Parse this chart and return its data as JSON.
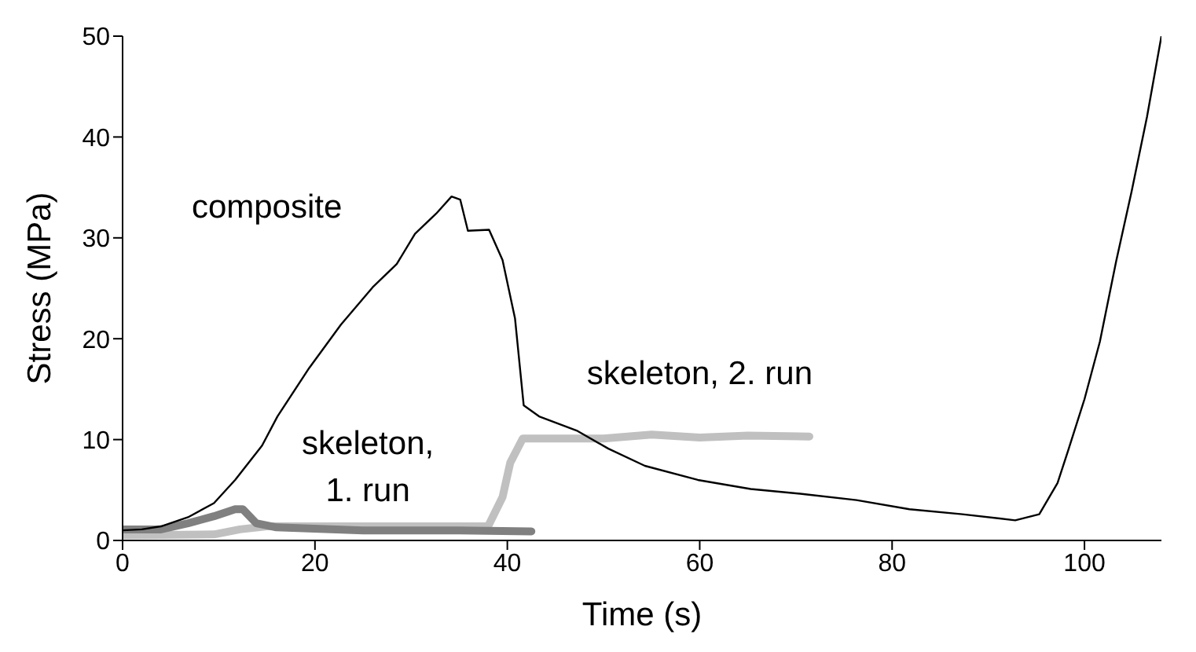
{
  "chart_data": {
    "type": "line",
    "xlabel": "Time (s)",
    "ylabel": "Stress (MPa)",
    "xlim": [
      0,
      108
    ],
    "xticks": [
      0,
      20,
      40,
      60,
      80,
      100
    ],
    "ylim": [
      0,
      50
    ],
    "yticks": [
      0,
      10,
      20,
      30,
      40,
      50
    ],
    "grid": false,
    "legend": false,
    "marker": "none",
    "line_style": "solid",
    "series": [
      {
        "name": "skeleton, 2. run",
        "color": "#c0c0c0",
        "x": [
          0,
          9.5,
          12.2,
          15,
          25,
          38,
          39.5,
          40.3,
          41.6,
          42.2,
          50,
          55,
          60,
          65,
          71.4
        ],
        "values": [
          0.5,
          0.6,
          1.1,
          1.4,
          1.4,
          1.4,
          4.3,
          7.7,
          10.1,
          10.1,
          10.1,
          10.5,
          10.2,
          10.4,
          10.3
        ]
      },
      {
        "name": "skeleton, 1. run",
        "color": "#808080",
        "x": [
          0,
          4,
          6.8,
          9.5,
          11.7,
          12.5,
          13.9,
          16,
          25,
          35,
          42.5
        ],
        "values": [
          1.1,
          1.1,
          1.7,
          2.4,
          3.1,
          3.1,
          1.7,
          1.3,
          1,
          1,
          0.9
        ]
      },
      {
        "name": "composite",
        "color": "#000000",
        "x": [
          0,
          2,
          4,
          6.8,
          9.5,
          11.7,
          14.5,
          16.1,
          19.4,
          22.7,
          26,
          28.5,
          30.4,
          32.6,
          34.2,
          35.1,
          35.9,
          38.1,
          39.5,
          40.8,
          41.7,
          43.3,
          47.2,
          50.5,
          54.3,
          59.8,
          65.3,
          70.8,
          76.3,
          81.8,
          87.3,
          92.8,
          95.3,
          97.2,
          98.3,
          100,
          101.6,
          103.3,
          104.9,
          106.5,
          108
        ],
        "values": [
          1,
          1.1,
          1.4,
          2.3,
          3.7,
          6,
          9.4,
          12.3,
          17.1,
          21.4,
          25.1,
          27.4,
          30.4,
          32.4,
          34.1,
          33.8,
          30.7,
          30.8,
          27.8,
          22,
          13.4,
          12.3,
          10.9,
          9.1,
          7.4,
          6,
          5.1,
          4.6,
          4,
          3.1,
          2.6,
          2,
          2.6,
          5.7,
          8.9,
          14,
          19.7,
          27.7,
          34.6,
          42,
          50
        ]
      }
    ]
  }
}
